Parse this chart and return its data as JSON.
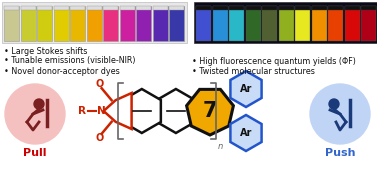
{
  "background_color": "#ffffff",
  "pull_circle_color": "#f5c0c0",
  "push_circle_color": "#c0d4f5",
  "pull_text": "Pull",
  "push_text": "Push",
  "pull_text_color": "#cc0000",
  "push_text_color": "#3366cc",
  "bullet_points_left": [
    "Novel donor-acceptor dyes",
    "Tunable emissions (visible-NIR)",
    "Large Stokes shifts"
  ],
  "bullet_points_right": [
    "Twisted molecular structures",
    "High fluorescence quantum yields (ΦF)"
  ],
  "bullet_color": "#111111",
  "bullet_fontsize": 5.8,
  "vial_colors_daylight": [
    "#c8c890",
    "#c8cc30",
    "#d0cc10",
    "#e0cc00",
    "#e8b800",
    "#f0a000",
    "#e83080",
    "#cc20a0",
    "#9020b0",
    "#5828b0",
    "#3838a8"
  ],
  "vial_colors_uv": [
    "#4050d0",
    "#2890d8",
    "#28b8c8",
    "#306828",
    "#506030",
    "#90b020",
    "#e8e820",
    "#f09000",
    "#e84000",
    "#d80808",
    "#b00018"
  ],
  "uv_bg_color": "#0a0a1a",
  "heptagon_fill": "#f0a800",
  "heptagon_text": "7",
  "bracket_color": "#666666",
  "imide_red": "#cc2200",
  "struct_black": "#111111",
  "ar_fill": "#c8dcf8",
  "ar_border": "#2255cc",
  "ar_text": "Ar",
  "sub_n": "n"
}
